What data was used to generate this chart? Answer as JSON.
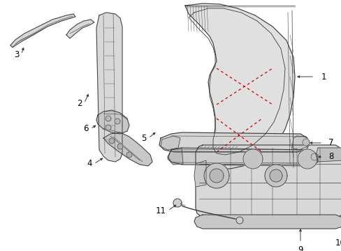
{
  "bg_color": "#ffffff",
  "lc": "#3a3a3a",
  "rc": "#cc0000",
  "lbl": "#000000",
  "figw": 4.89,
  "figh": 3.6,
  "dpi": 100
}
